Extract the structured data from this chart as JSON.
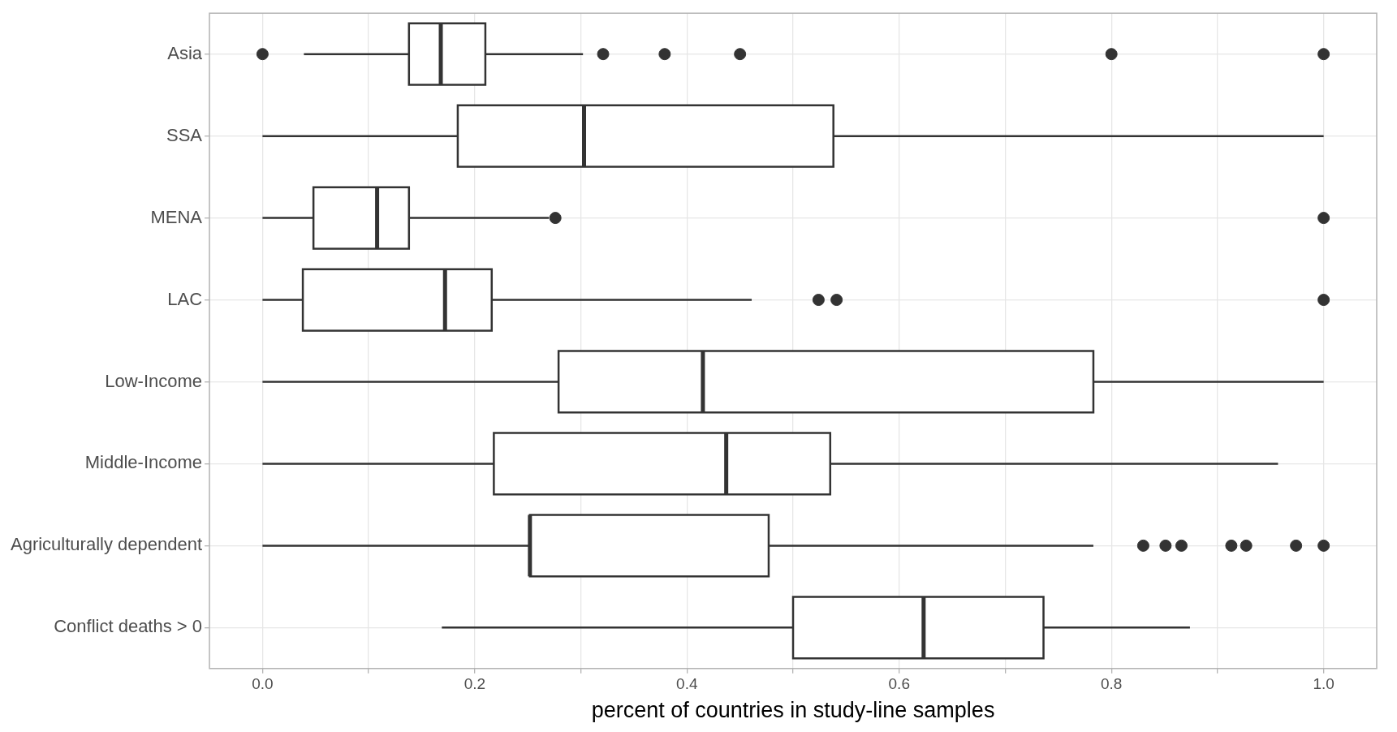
{
  "chart_data": {
    "type": "box",
    "orientation": "horizontal",
    "xlabel": "percent of countries in study-line samples",
    "categories": [
      "Asia",
      "SSA",
      "MENA",
      "LAC",
      "Low-Income",
      "Middle-Income",
      "Agriculturally dependent",
      "Conflict deaths > 0"
    ],
    "series": [
      {
        "color": "#333333",
        "boxes": [
          {
            "low": 0.039,
            "q1": 0.138,
            "median": 0.168,
            "q3": 0.21,
            "high": 0.302,
            "outliers": [
              0,
              0.321,
              0.379,
              0.45,
              0.8,
              1
            ]
          },
          {
            "low": 0,
            "q1": 0.184,
            "median": 0.303,
            "q3": 0.538,
            "high": 1
          },
          {
            "low": 0,
            "q1": 0.048,
            "median": 0.108,
            "q3": 0.138,
            "high": 0.27,
            "outliers": [
              0.276,
              1
            ]
          },
          {
            "low": 0,
            "q1": 0.038,
            "median": 0.172,
            "q3": 0.216,
            "high": 0.461,
            "outliers": [
              0.524,
              0.541,
              1
            ]
          },
          {
            "low": 0,
            "q1": 0.279,
            "median": 0.415,
            "q3": 0.783,
            "high": 1
          },
          {
            "low": 0,
            "q1": 0.218,
            "median": 0.437,
            "q3": 0.535,
            "high": 0.957
          },
          {
            "low": 0,
            "q1": 0.252,
            "median": 0.252,
            "q3": 0.477,
            "high": 0.783,
            "outliers": [
              0.83,
              0.851,
              0.866,
              0.913,
              0.927,
              0.974,
              1
            ]
          },
          {
            "low": 0.169,
            "q1": 0.5,
            "median": 0.623,
            "q3": 0.736,
            "high": 0.874
          }
        ]
      }
    ],
    "xlim": [
      -0.05,
      1.05
    ],
    "xticks": [
      {
        "value": 0,
        "label": "0.0"
      },
      {
        "value": 0.1,
        "label": null
      },
      {
        "value": 0.2,
        "label": "0.2"
      },
      {
        "value": 0.3,
        "label": null
      },
      {
        "value": 0.4,
        "label": "0.4"
      },
      {
        "value": 0.5,
        "label": null
      },
      {
        "value": 0.6,
        "label": "0.6"
      },
      {
        "value": 0.7,
        "label": null
      },
      {
        "value": 0.8,
        "label": "0.8"
      },
      {
        "value": 0.9,
        "label": null
      },
      {
        "value": 1,
        "label": "1.0"
      }
    ],
    "grid": true,
    "legend": false
  }
}
